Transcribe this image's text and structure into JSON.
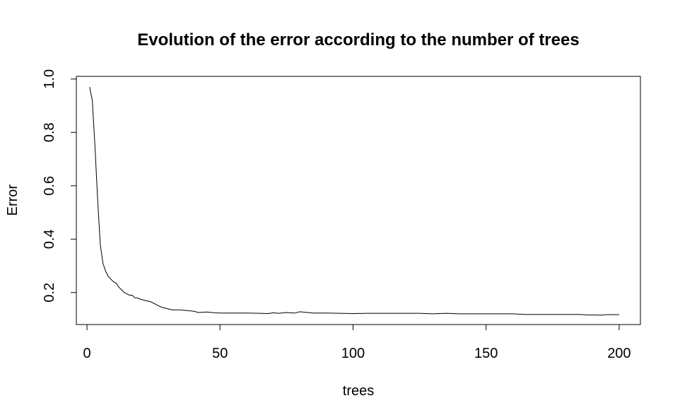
{
  "chart_data": {
    "type": "line",
    "title": "Evolution of the error according to the number of trees",
    "xlabel": "trees",
    "ylabel": "Error",
    "xlim": [
      -4,
      208
    ],
    "ylim": [
      0.08,
      1.01
    ],
    "xticks": [
      0,
      50,
      100,
      150,
      200
    ],
    "yticks": [
      0.2,
      0.4,
      0.6,
      0.8,
      1.0
    ],
    "xtick_labels": [
      "0",
      "50",
      "100",
      "150",
      "200"
    ],
    "ytick_labels": [
      "0.2",
      "0.4",
      "0.6",
      "0.8",
      "1.0"
    ],
    "grid": false,
    "legend": "none",
    "line_color": "#000000",
    "series": [
      {
        "x": [
          1,
          2,
          3,
          4,
          5,
          6,
          7,
          8,
          9,
          10,
          11,
          12,
          13,
          14,
          15,
          16,
          17,
          18,
          19,
          20,
          22,
          24,
          26,
          28,
          30,
          32,
          35,
          38,
          40,
          42,
          45,
          48,
          50,
          55,
          60,
          65,
          68,
          70,
          72,
          75,
          78,
          80,
          82,
          85,
          90,
          95,
          100,
          105,
          110,
          115,
          120,
          125,
          130,
          135,
          140,
          145,
          150,
          155,
          160,
          165,
          170,
          175,
          180,
          185,
          188,
          190,
          193,
          195,
          200
        ],
        "y": [
          0.97,
          0.92,
          0.75,
          0.55,
          0.38,
          0.31,
          0.28,
          0.26,
          0.25,
          0.24,
          0.235,
          0.22,
          0.21,
          0.2,
          0.195,
          0.19,
          0.19,
          0.18,
          0.18,
          0.175,
          0.17,
          0.165,
          0.155,
          0.145,
          0.14,
          0.135,
          0.135,
          0.132,
          0.13,
          0.125,
          0.127,
          0.124,
          0.123,
          0.123,
          0.123,
          0.122,
          0.121,
          0.124,
          0.122,
          0.125,
          0.123,
          0.128,
          0.126,
          0.123,
          0.123,
          0.122,
          0.121,
          0.122,
          0.122,
          0.122,
          0.122,
          0.122,
          0.12,
          0.122,
          0.12,
          0.12,
          0.12,
          0.12,
          0.12,
          0.118,
          0.118,
          0.118,
          0.118,
          0.118,
          0.116,
          0.116,
          0.115,
          0.117,
          0.117
        ]
      }
    ]
  }
}
